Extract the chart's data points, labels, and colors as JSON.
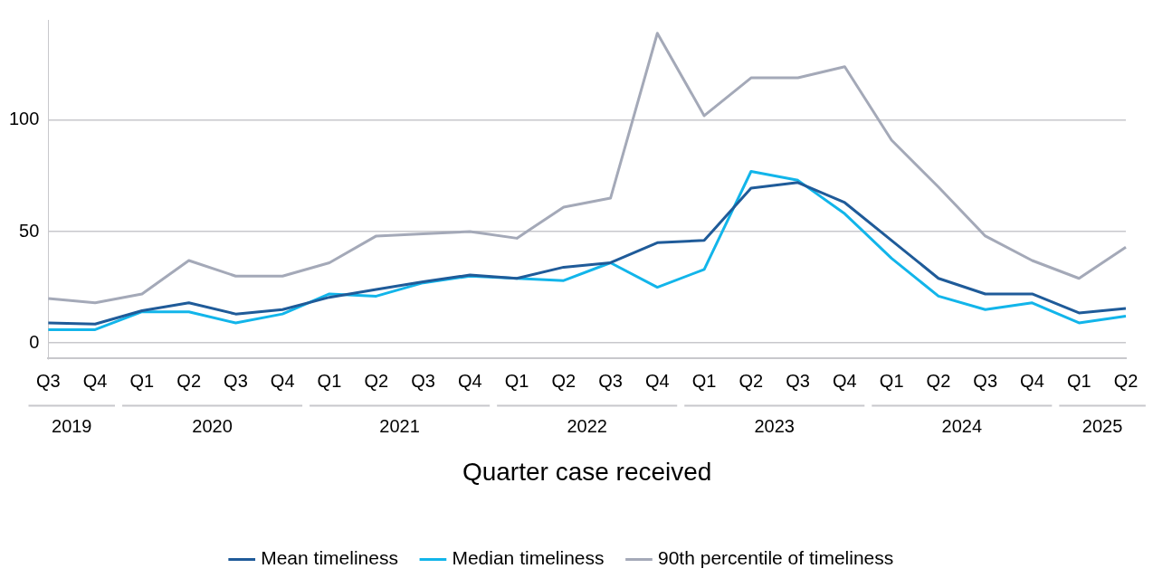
{
  "chart_data": {
    "type": "line",
    "xlabel": "Quarter case received",
    "categories": [
      "Q3",
      "Q4",
      "Q1",
      "Q2",
      "Q3",
      "Q4",
      "Q1",
      "Q2",
      "Q3",
      "Q4",
      "Q1",
      "Q2",
      "Q3",
      "Q4",
      "Q1",
      "Q2",
      "Q3",
      "Q4",
      "Q1",
      "Q2",
      "Q3",
      "Q4",
      "Q1",
      "Q2"
    ],
    "annotations": [
      "2019",
      "2020",
      "2021",
      "2022",
      "2023",
      "2024",
      "2025"
    ],
    "series": [
      {
        "name": "Mean timeliness",
        "color": "#1f5b99",
        "values": [
          9,
          8.5,
          14.5,
          18,
          13,
          15,
          20.5,
          24,
          27.5,
          30.5,
          29,
          34,
          36,
          45,
          46,
          69.5,
          72,
          63,
          46,
          29,
          22,
          22,
          13.5,
          15.5
        ]
      },
      {
        "name": "Median timeliness",
        "color": "#12b5ea",
        "values": [
          6,
          6,
          14,
          14,
          9,
          13,
          22,
          21,
          27,
          30,
          29,
          28,
          36,
          25,
          33,
          77,
          73,
          58,
          38,
          21,
          15,
          18,
          9,
          12
        ]
      },
      {
        "name": "90th percentile of timeliness",
        "color": "#a4a9b8",
        "values": [
          20,
          18,
          22,
          37,
          30,
          30,
          36,
          48,
          49,
          50,
          47,
          61,
          65,
          139,
          102,
          119,
          119,
          124,
          91,
          70,
          48,
          37,
          29,
          43
        ]
      }
    ],
    "ylim": [
      -7,
      145
    ],
    "yticks": [
      0,
      50,
      100
    ],
    "grid": "y",
    "legend": "bottom",
    "marker": "none",
    "line_style": "solid"
  }
}
